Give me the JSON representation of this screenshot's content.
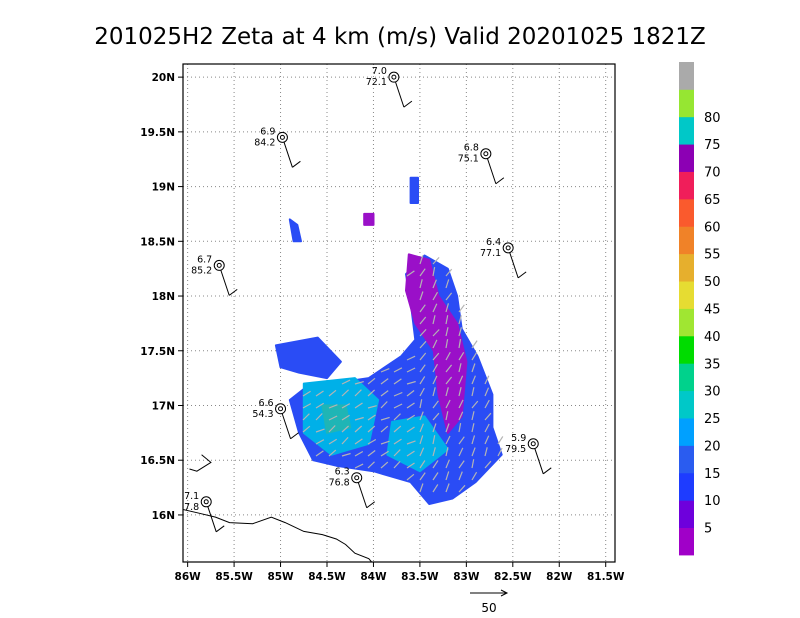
{
  "chart_data": {
    "type": "heatmap",
    "title": "201025H2 Zeta at 4 km (m/s) Valid 20201025 1821Z",
    "x_axis": {
      "range": [
        -86.05,
        -81.4
      ],
      "ticks": [
        {
          "value": -86.0,
          "label": "86W"
        },
        {
          "value": -85.5,
          "label": "85.5W"
        },
        {
          "value": -85.0,
          "label": "85W"
        },
        {
          "value": -84.5,
          "label": "84.5W"
        },
        {
          "value": -84.0,
          "label": "84W"
        },
        {
          "value": -83.5,
          "label": "83.5W"
        },
        {
          "value": -83.0,
          "label": "83W"
        },
        {
          "value": -82.5,
          "label": "82.5W"
        },
        {
          "value": -82.0,
          "label": "82W"
        },
        {
          "value": -81.5,
          "label": "81.5W"
        }
      ]
    },
    "y_axis": {
      "range": [
        15.57,
        20.12
      ],
      "ticks": [
        {
          "value": 16.0,
          "label": "16N"
        },
        {
          "value": 16.5,
          "label": "16.5N"
        },
        {
          "value": 17.0,
          "label": "17N"
        },
        {
          "value": 17.5,
          "label": "17.5N"
        },
        {
          "value": 18.0,
          "label": "18N"
        },
        {
          "value": 18.5,
          "label": "18.5N"
        },
        {
          "value": 19.0,
          "label": "19N"
        },
        {
          "value": 19.5,
          "label": "19.5N"
        },
        {
          "value": 20.0,
          "label": "20N"
        }
      ]
    },
    "grid": "dotted",
    "colorbar": {
      "placement": "right",
      "bins": [
        {
          "color": "#a000c8"
        },
        {
          "color": "#6e00dc"
        },
        {
          "color": "#1e3cff"
        },
        {
          "color": "#2a5cf0"
        },
        {
          "color": "#00a0ff"
        },
        {
          "color": "#00c8c8"
        },
        {
          "color": "#00d28c"
        },
        {
          "color": "#00dc00"
        },
        {
          "color": "#a0e632"
        },
        {
          "color": "#e6dc32"
        },
        {
          "color": "#e6af2d"
        },
        {
          "color": "#f08228"
        },
        {
          "color": "#fa5a2d"
        },
        {
          "color": "#f01e5a"
        },
        {
          "color": "#8c00b4"
        },
        {
          "color": "#00c8c8"
        },
        {
          "color": "#96e632"
        },
        {
          "color": "#aaaaaa"
        }
      ],
      "labels": [
        "5",
        "10",
        "15",
        "20",
        "25",
        "30",
        "35",
        "40",
        "45",
        "50",
        "55",
        "60",
        "65",
        "70",
        "75",
        "80"
      ]
    },
    "stations": [
      {
        "lon": -83.78,
        "lat": 20.0,
        "top": "7.0",
        "bottom": "72.1"
      },
      {
        "lon": -84.98,
        "lat": 19.45,
        "top": "6.9",
        "bottom": "84.2"
      },
      {
        "lon": -82.79,
        "lat": 19.3,
        "top": "6.8",
        "bottom": "75.1"
      },
      {
        "lon": -85.66,
        "lat": 18.28,
        "top": "6.7",
        "bottom": "85.2"
      },
      {
        "lon": -82.55,
        "lat": 18.44,
        "top": "6.4",
        "bottom": "77.1"
      },
      {
        "lon": -85.0,
        "lat": 16.97,
        "top": "6.6",
        "bottom": "54.3"
      },
      {
        "lon": -82.28,
        "lat": 16.65,
        "top": "5.9",
        "bottom": "79.5"
      },
      {
        "lon": -84.18,
        "lat": 16.34,
        "top": "6.3",
        "bottom": "76.8"
      },
      {
        "lon": -85.8,
        "lat": 16.12,
        "top": "7.1",
        "bottom": "7.8"
      }
    ],
    "vector_reference": {
      "label": "50"
    }
  }
}
